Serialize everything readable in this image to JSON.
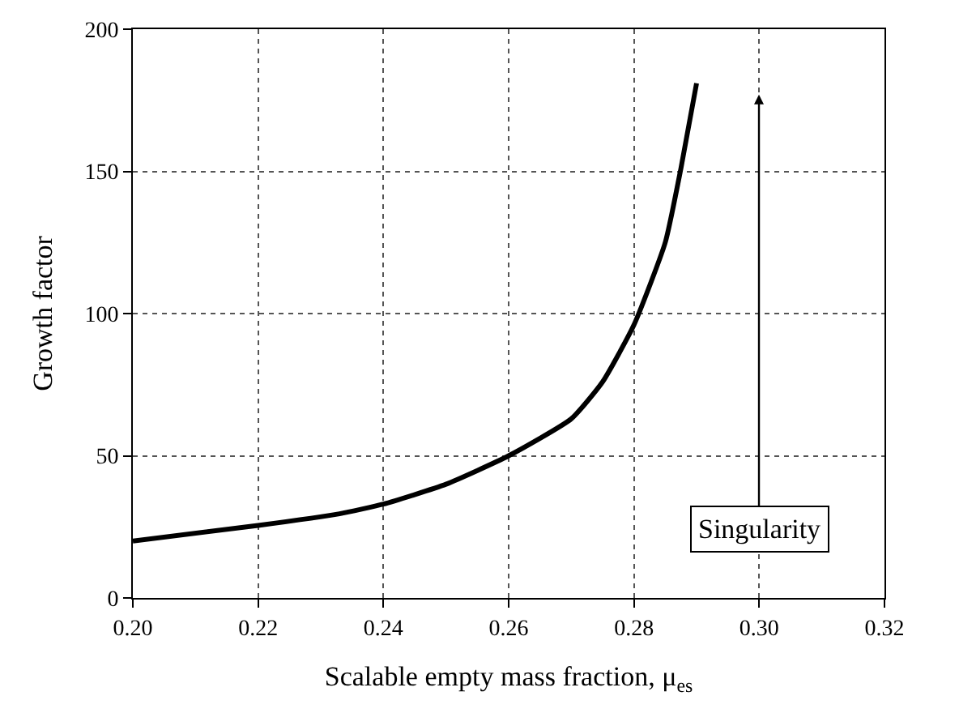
{
  "chart_data": {
    "type": "line",
    "xlabel": "Scalable empty mass fraction, μ$_{es}$",
    "ylabel": "Growth factor",
    "x": [
      0.2,
      0.22,
      0.233,
      0.24,
      0.25,
      0.26,
      0.27,
      0.275,
      0.28,
      0.285,
      0.2875,
      0.29
    ],
    "series": [
      {
        "color": "#000000",
        "values": [
          20,
          25.5,
          29.6,
          33,
          40,
          50,
          63,
          76,
          96,
          125,
          151,
          181
        ]
      }
    ],
    "xlim": [
      0.2,
      0.32
    ],
    "xticks": [
      {
        "value": 0.2,
        "label": "0.20"
      },
      0.22,
      0.24,
      0.26,
      0.28,
      {
        "value": 0.3,
        "label": "0.30"
      },
      0.32
    ],
    "ylim": [
      0,
      200
    ],
    "yticks": [
      0,
      50,
      100,
      150,
      200
    ],
    "grid": true,
    "legend": false,
    "marker": "none",
    "line_style": "solid",
    "annotations": [
      "Singularity"
    ]
  }
}
